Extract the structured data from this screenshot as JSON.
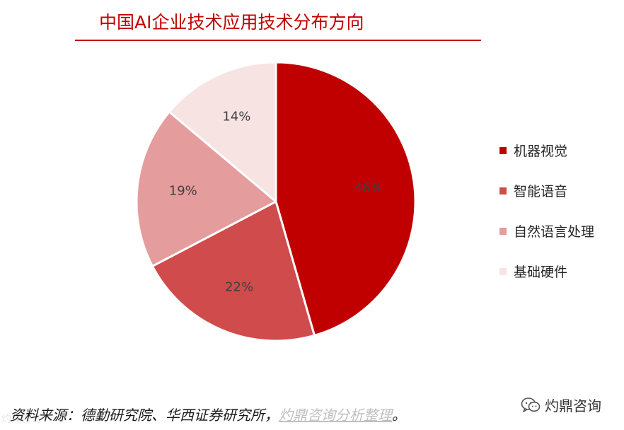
{
  "header": {
    "title": "中国AI企业技术应用技术分布方向"
  },
  "chart_data": {
    "type": "pie",
    "title": "中国AI企业技术应用技术分布方向",
    "slices": [
      {
        "label": "机器视觉",
        "value": 46,
        "display": "46%",
        "color": "#c00000"
      },
      {
        "label": "智能语音",
        "value": 22,
        "display": "22%",
        "color": "#d04b4b"
      },
      {
        "label": "自然语言处理",
        "value": 19,
        "display": "19%",
        "color": "#e59c9c"
      },
      {
        "label": "基础硬件",
        "value": 14,
        "display": "14%",
        "color": "#f8e3e3"
      }
    ],
    "start": "12 o'clock",
    "direction": "clockwise",
    "legend_position": "right"
  },
  "footer": {
    "source_prefix": "资料来源：德勤研究院、华西证券研究所，",
    "source_highlight": "灼鼎咨询分析整理",
    "source_suffix": "。",
    "account_name": "灼鼎咨询",
    "watermark": "灼鼎咨询"
  },
  "icons": {
    "wechat": "wechat-icon"
  }
}
